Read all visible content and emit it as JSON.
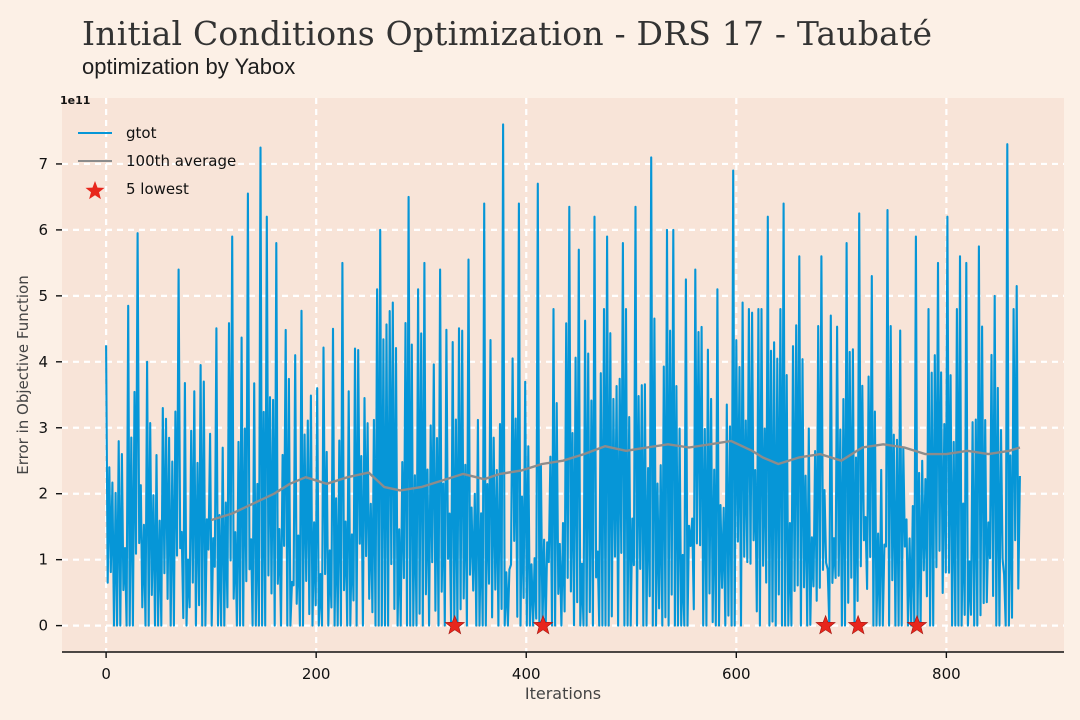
{
  "title": "Initial Conditions Optimization - DRS 17 - Taubaté",
  "subtitle": "optimization by Yabox",
  "colors": {
    "page_bg": "#fcf0e6",
    "plot_bg": "#f8e4d8",
    "grid": "#ffffff",
    "gtot": "#0696d7",
    "average": "#8c8c8c",
    "lowest": "#e8261c"
  },
  "chart_data": {
    "type": "line",
    "xlabel": "Iterations",
    "ylabel": "Error in Objective Function",
    "y_offset_label": "1e11",
    "xlim": [
      -42,
      912
    ],
    "ylim": [
      -0.4,
      8.0
    ],
    "x_ticks": [
      0,
      200,
      400,
      600,
      800
    ],
    "x_tick_labels": [
      "0",
      "200",
      "400",
      "600",
      "800"
    ],
    "y_ticks": [
      0,
      1,
      2,
      3,
      4,
      5,
      6,
      7
    ],
    "y_tick_labels": [
      "0",
      "1",
      "2",
      "3",
      "4",
      "5",
      "6",
      "7"
    ],
    "grid": true,
    "legend_position": "top-left",
    "series": [
      {
        "name": "gtot",
        "kind": "line",
        "x_start": 0,
        "x_end": 870,
        "peaks": [
          [
            0,
            4.25
          ],
          [
            15,
            2.6
          ],
          [
            22,
            4.85
          ],
          [
            31,
            5.95
          ],
          [
            40,
            4.0
          ],
          [
            55,
            3.3
          ],
          [
            68,
            5.4
          ],
          [
            92,
            3.7
          ],
          [
            120,
            5.9
          ],
          [
            135,
            6.55
          ],
          [
            148,
            7.25
          ],
          [
            152,
            6.2
          ],
          [
            162,
            5.8
          ],
          [
            180,
            4.1
          ],
          [
            200,
            3.6
          ],
          [
            215,
            4.5
          ],
          [
            225,
            5.5
          ],
          [
            238,
            4.2
          ],
          [
            258,
            5.1
          ],
          [
            260,
            6.0
          ],
          [
            272,
            4.9
          ],
          [
            287,
            6.5
          ],
          [
            296,
            5.1
          ],
          [
            304,
            5.5
          ],
          [
            318,
            5.4
          ],
          [
            330,
            4.3
          ],
          [
            345,
            5.55
          ],
          [
            360,
            6.4
          ],
          [
            378,
            7.6
          ],
          [
            392,
            6.4
          ],
          [
            410,
            6.7
          ],
          [
            440,
            6.35
          ],
          [
            450,
            5.7
          ],
          [
            465,
            6.2
          ],
          [
            478,
            5.9
          ],
          [
            493,
            5.8
          ],
          [
            505,
            6.35
          ],
          [
            520,
            7.1
          ],
          [
            533,
            6.0
          ],
          [
            540,
            6.0
          ],
          [
            552,
            5.25
          ],
          [
            560,
            5.4
          ],
          [
            582,
            5.1
          ],
          [
            597,
            6.9
          ],
          [
            605,
            4.9
          ],
          [
            630,
            6.2
          ],
          [
            645,
            6.4
          ],
          [
            660,
            5.6
          ],
          [
            680,
            5.6
          ],
          [
            690,
            4.7
          ],
          [
            705,
            5.8
          ],
          [
            718,
            6.25
          ],
          [
            730,
            5.3
          ],
          [
            745,
            6.3
          ],
          [
            770,
            5.9
          ],
          [
            790,
            4.1
          ],
          [
            793,
            5.5
          ],
          [
            800,
            6.2
          ],
          [
            812,
            5.6
          ],
          [
            820,
            5.5
          ],
          [
            832,
            5.75
          ],
          [
            845,
            5.0
          ],
          [
            858,
            7.3
          ],
          [
            868,
            5.15
          ]
        ]
      },
      {
        "name": "100th average",
        "kind": "line",
        "points": [
          [
            100,
            1.6
          ],
          [
            120,
            1.7
          ],
          [
            140,
            1.85
          ],
          [
            160,
            2.0
          ],
          [
            175,
            2.15
          ],
          [
            190,
            2.25
          ],
          [
            210,
            2.15
          ],
          [
            230,
            2.25
          ],
          [
            250,
            2.32
          ],
          [
            265,
            2.1
          ],
          [
            280,
            2.05
          ],
          [
            300,
            2.1
          ],
          [
            320,
            2.2
          ],
          [
            340,
            2.3
          ],
          [
            360,
            2.22
          ],
          [
            375,
            2.3
          ],
          [
            395,
            2.35
          ],
          [
            415,
            2.45
          ],
          [
            435,
            2.5
          ],
          [
            455,
            2.6
          ],
          [
            475,
            2.72
          ],
          [
            495,
            2.65
          ],
          [
            515,
            2.7
          ],
          [
            535,
            2.75
          ],
          [
            555,
            2.7
          ],
          [
            575,
            2.75
          ],
          [
            595,
            2.8
          ],
          [
            615,
            2.65
          ],
          [
            625,
            2.55
          ],
          [
            640,
            2.45
          ],
          [
            660,
            2.55
          ],
          [
            680,
            2.6
          ],
          [
            700,
            2.5
          ],
          [
            720,
            2.7
          ],
          [
            740,
            2.75
          ],
          [
            760,
            2.7
          ],
          [
            780,
            2.6
          ],
          [
            800,
            2.6
          ],
          [
            820,
            2.65
          ],
          [
            840,
            2.6
          ],
          [
            860,
            2.65
          ],
          [
            870,
            2.7
          ]
        ]
      },
      {
        "name": "5 lowest",
        "kind": "scatter",
        "marker": "star",
        "x": [
          332,
          416,
          685,
          716,
          772
        ],
        "y": [
          0,
          0,
          0,
          0,
          0
        ]
      }
    ]
  }
}
